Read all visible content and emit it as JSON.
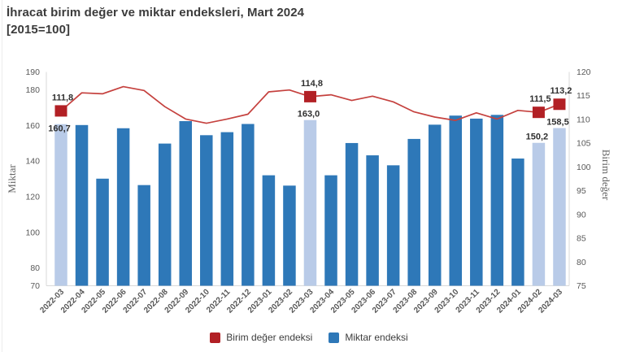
{
  "page": {
    "title": "İhracat birim değer ve miktar endeksleri, Mart 2024",
    "subtitle": "[2015=100]"
  },
  "chart_data": {
    "type": "bar",
    "subtype": "bar-line-combo-dual-axis",
    "title": "İhracat birim değer ve miktar endeksleri, Mart 2024 [2015=100]",
    "categories": [
      "2022-03",
      "2022-04",
      "2022-05",
      "2022-06",
      "2022-07",
      "2022-08",
      "2022-09",
      "2022-10",
      "2022-11",
      "2022-12",
      "2023-01",
      "2023-02",
      "2023-03",
      "2023-04",
      "2023-05",
      "2023-06",
      "2023-07",
      "2023-08",
      "2023-09",
      "2023-10",
      "2023-11",
      "2023-12",
      "2024-01",
      "2024-02",
      "2024-03"
    ],
    "series": [
      {
        "name": "Miktar endeksi",
        "type": "bar",
        "axis": "left",
        "color": "#2e78b8",
        "highlight_color": "#b9cbe8",
        "values": [
          160.7,
          160.2,
          130.1,
          158.4,
          126.5,
          149.8,
          162.4,
          154.5,
          156.2,
          160.8,
          132.0,
          126.2,
          163.0,
          132.0,
          150.1,
          143.2,
          137.6,
          152.4,
          160.4,
          165.5,
          163.8,
          165.9,
          141.4,
          150.2,
          158.5
        ]
      },
      {
        "name": "Birim değer endeksi",
        "type": "line",
        "axis": "right",
        "color": "#c5413e",
        "marker_color": "#b22025",
        "values": [
          111.8,
          115.6,
          115.4,
          116.9,
          116.1,
          112.7,
          110.1,
          109.2,
          110.1,
          111.1,
          115.8,
          116.2,
          114.8,
          115.2,
          114.0,
          114.9,
          113.7,
          111.6,
          110.5,
          109.8,
          111.4,
          110.1,
          111.9,
          111.5,
          113.2
        ]
      }
    ],
    "highlighted_indices": [
      0,
      12,
      23,
      24
    ],
    "labeled_points": [
      {
        "index": 0,
        "category": "2022-03",
        "bar_label": "160,7",
        "line_label": "111,8"
      },
      {
        "index": 12,
        "category": "2023-03",
        "bar_label": "163,0",
        "line_label": "114,8"
      },
      {
        "index": 23,
        "category": "2024-02",
        "bar_label": "150,2",
        "line_label": "111,5"
      },
      {
        "index": 24,
        "category": "2024-03",
        "bar_label": "158,5",
        "line_label": "113,2"
      }
    ],
    "left_axis": {
      "title": "Miktar",
      "min": 70,
      "max": 190,
      "ticks": [
        190,
        180,
        160,
        140,
        120,
        100,
        80,
        70
      ]
    },
    "right_axis": {
      "title": "Birim değer",
      "min": 75,
      "max": 120,
      "ticks": [
        120,
        115,
        110,
        105,
        100,
        95,
        90,
        85,
        80,
        75
      ]
    },
    "grid": false,
    "legend_position": "bottom-center",
    "legend": [
      {
        "label": "Birim değer endeksi",
        "color": "#b22025"
      },
      {
        "label": "Miktar endeksi",
        "color": "#2e78b8"
      }
    ],
    "colors": {
      "axis_line": "#d9d9d9",
      "tick_label": "#595959",
      "x_label": "#595959",
      "value_label": "#2f2f2f",
      "axis_title": "#666666"
    }
  }
}
